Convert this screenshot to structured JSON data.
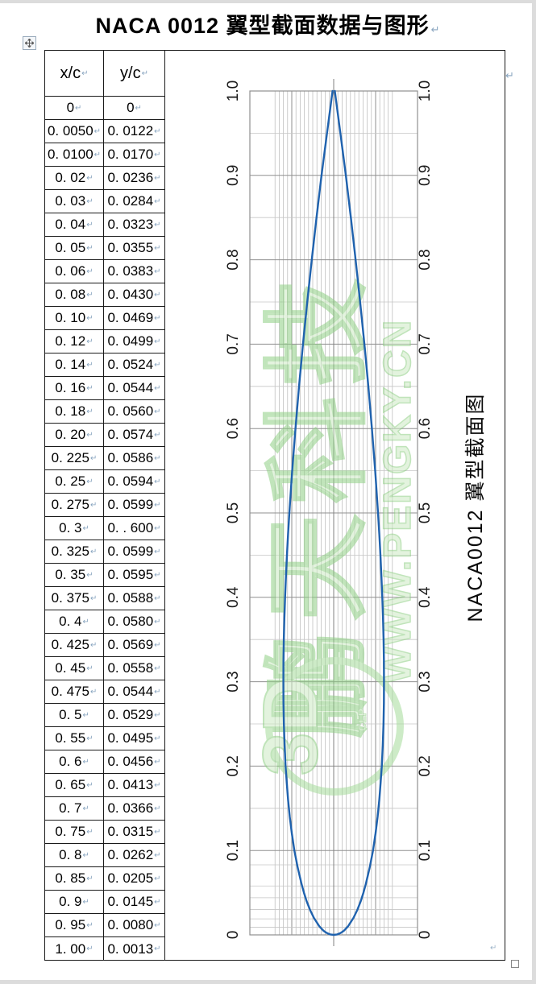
{
  "page": {
    "title": "NACA 0012 翼型截面数据与图形",
    "paragraph_mark": "↵"
  },
  "table": {
    "headers": [
      "x/c",
      "y/c"
    ],
    "rows": [
      [
        "0",
        "0"
      ],
      [
        "0. 0050",
        "0. 0122"
      ],
      [
        "0. 0100",
        "0. 0170"
      ],
      [
        "0. 02",
        "0. 0236"
      ],
      [
        "0. 03",
        "0. 0284"
      ],
      [
        "0. 04",
        "0. 0323"
      ],
      [
        "0. 05",
        "0. 0355"
      ],
      [
        "0. 06",
        "0. 0383"
      ],
      [
        "0. 08",
        "0. 0430"
      ],
      [
        "0. 10",
        "0. 0469"
      ],
      [
        "0. 12",
        "0. 0499"
      ],
      [
        "0. 14",
        "0. 0524"
      ],
      [
        "0. 16",
        "0. 0544"
      ],
      [
        "0. 18",
        "0. 0560"
      ],
      [
        "0. 20",
        "0. 0574"
      ],
      [
        "0. 225",
        "0. 0586"
      ],
      [
        "0. 25",
        "0. 0594"
      ],
      [
        "0. 275",
        "0. 0599"
      ],
      [
        "0. 3",
        "0. . 600"
      ],
      [
        "0. 325",
        "0. 0599"
      ],
      [
        "0. 35",
        "0. 0595"
      ],
      [
        "0. 375",
        "0. 0588"
      ],
      [
        "0. 4",
        "0. 0580"
      ],
      [
        "0. 425",
        "0. 0569"
      ],
      [
        "0. 45",
        "0. 0558"
      ],
      [
        "0. 475",
        "0. 0544"
      ],
      [
        "0. 5",
        "0. 0529"
      ],
      [
        "0. 55",
        "0. 0495"
      ],
      [
        "0. 6",
        "0. 0456"
      ],
      [
        "0. 65",
        "0. 0413"
      ],
      [
        "0. 7",
        "0. 0366"
      ],
      [
        "0. 75",
        "0. 0315"
      ],
      [
        "0. 8",
        "0. 0262"
      ],
      [
        "0. 85",
        "0. 0205"
      ],
      [
        "0. 9",
        "0. 0145"
      ],
      [
        "0. 95",
        "0. 0080"
      ],
      [
        "1. 00",
        "0. 0013"
      ]
    ]
  },
  "chart_data": {
    "type": "line",
    "title": "",
    "side_caption": "NACA0012 翼型截面图",
    "orientation": "chord axis vertical, leading edge at bottom",
    "series": [
      {
        "name": "NACA0012 section outline (symmetric, mirrored about chord)",
        "x_over_c": [
          0,
          0.005,
          0.01,
          0.02,
          0.03,
          0.04,
          0.05,
          0.06,
          0.08,
          0.1,
          0.12,
          0.14,
          0.16,
          0.18,
          0.2,
          0.225,
          0.25,
          0.275,
          0.3,
          0.325,
          0.35,
          0.375,
          0.4,
          0.425,
          0.45,
          0.475,
          0.5,
          0.55,
          0.6,
          0.65,
          0.7,
          0.75,
          0.8,
          0.85,
          0.9,
          0.95,
          1.0
        ],
        "y_over_c": [
          0,
          0.0122,
          0.017,
          0.0236,
          0.0284,
          0.0323,
          0.0355,
          0.0383,
          0.043,
          0.0469,
          0.0499,
          0.0524,
          0.0544,
          0.056,
          0.0574,
          0.0586,
          0.0594,
          0.0599,
          0.06,
          0.0599,
          0.0595,
          0.0588,
          0.058,
          0.0569,
          0.0558,
          0.0544,
          0.0529,
          0.0495,
          0.0456,
          0.0413,
          0.0366,
          0.0315,
          0.0262,
          0.0205,
          0.0145,
          0.008,
          0.0013
        ]
      }
    ],
    "value_axis": {
      "range": [
        0,
        1
      ],
      "ticks": [
        "1.0",
        "0.9",
        "0.8",
        "0.7",
        "0.6",
        "0.5",
        "0.4",
        "0.3",
        "0.2",
        "0.1",
        "0"
      ],
      "major_unit": 0.1,
      "minor_unit": 0.05,
      "extra_minor_lines": [
        0.083,
        0.058,
        0.044,
        0.03,
        0.019,
        0.009
      ],
      "sides": "both"
    },
    "thickness_axis": {
      "range": [
        -0.1,
        0.1
      ],
      "minor_unit": 0.005,
      "major_unit": 0.05,
      "labels_visible": false
    },
    "colors": {
      "curve": "#1f62ae",
      "grid_major": "#8f8f8f",
      "grid_minor": "#c6c6c6",
      "grid_minor_vertical": "#b8b8b8",
      "axis_line": "#808080",
      "frame": "#8f8f8f",
      "watermark_green": "#8ecf83"
    },
    "watermark": {
      "text_cn": "鹏天科技",
      "text_url": "WWW.PENGKY.CN",
      "logo_text": "3D",
      "logo_sub": "CLP"
    }
  }
}
